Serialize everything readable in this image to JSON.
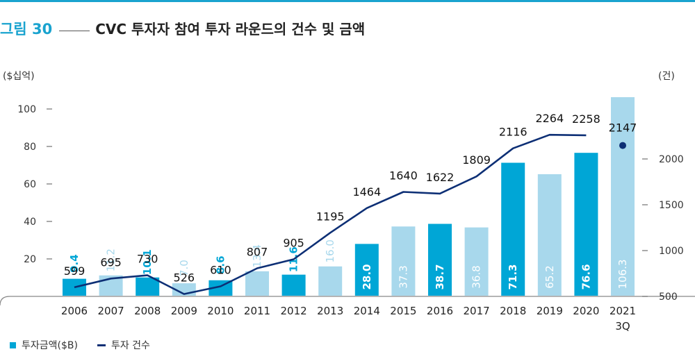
{
  "header": {
    "figure_label": "그림 30",
    "title": "CVC 투자자 참여 투자 라운드의 건수 및 금액"
  },
  "colors": {
    "accent": "#1aa3cf",
    "bar_dark": "#00a6d6",
    "bar_light": "#a8d8ec",
    "line": "#0d2f75"
  },
  "chart_data": {
    "type": "bar",
    "categories": [
      "2006",
      "2007",
      "2008",
      "2009",
      "2010",
      "2011",
      "2012",
      "2013",
      "2014",
      "2015",
      "2016",
      "2017",
      "2018",
      "2019",
      "2020",
      "2021\n3Q"
    ],
    "series": [
      {
        "name": "투자금액($B)",
        "type": "bar",
        "axis": "left",
        "values": [
          9.4,
          11.2,
          10.1,
          7.0,
          8.6,
          13.4,
          11.6,
          16.0,
          28.0,
          37.3,
          38.7,
          36.8,
          71.3,
          65.2,
          76.6,
          106.3
        ],
        "labels": [
          "9.4",
          "11.2",
          "10.1",
          "7.0",
          "8.6",
          "13.4",
          "11.6",
          "16.0",
          "28.0",
          "37.3",
          "38.7",
          "36.8",
          "71.3",
          "65.2",
          "76.6",
          "106.3"
        ],
        "shade": [
          "dark",
          "light",
          "dark",
          "light",
          "dark",
          "light",
          "dark",
          "light",
          "dark",
          "light",
          "dark",
          "light",
          "dark",
          "light",
          "dark",
          "light"
        ]
      },
      {
        "name": "투자 건수",
        "type": "line",
        "axis": "right",
        "values": [
          599,
          695,
          730,
          526,
          610,
          807,
          905,
          1195,
          1464,
          1640,
          1622,
          1809,
          2116,
          2264,
          2258,
          2147
        ],
        "labels": [
          "599",
          "695",
          "730",
          "526",
          "610",
          "807",
          "905",
          "1195",
          "1464",
          "1640",
          "1622",
          "1809",
          "2116",
          "2264",
          "2258",
          "2147"
        ]
      }
    ],
    "ylabel_left": "($십억)",
    "ylabel_right": "(건)",
    "ylim_left": [
      0,
      110
    ],
    "ylim_right": [
      0,
      2750
    ],
    "yticks_left": [
      20,
      40,
      60,
      80,
      100
    ],
    "yticks_right": [
      500,
      1000,
      1500,
      2000
    ],
    "legend_position": "bottom-left",
    "grid": false
  }
}
